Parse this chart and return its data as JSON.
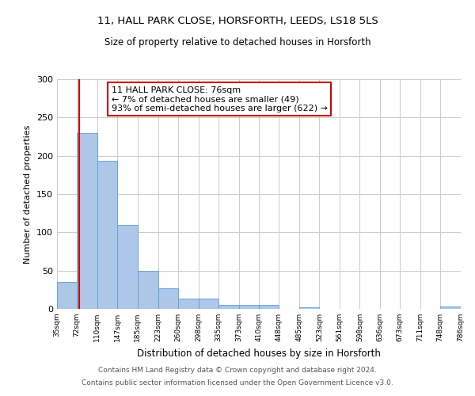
{
  "title1": "11, HALL PARK CLOSE, HORSFORTH, LEEDS, LS18 5LS",
  "title2": "Size of property relative to detached houses in Horsforth",
  "xlabel": "Distribution of detached houses by size in Horsforth",
  "ylabel": "Number of detached properties",
  "annotation_title": "11 HALL PARK CLOSE: 76sqm",
  "annotation_line2": "← 7% of detached houses are smaller (49)",
  "annotation_line3": "93% of semi-detached houses are larger (622) →",
  "footer1": "Contains HM Land Registry data © Crown copyright and database right 2024.",
  "footer2": "Contains public sector information licensed under the Open Government Licence v3.0.",
  "bar_edges": [
    35,
    72,
    110,
    147,
    185,
    223,
    260,
    298,
    335,
    373,
    410,
    448,
    485,
    523,
    561,
    598,
    636,
    673,
    711,
    748,
    786
  ],
  "bar_heights": [
    35,
    230,
    193,
    110,
    50,
    27,
    13,
    13,
    5,
    5,
    5,
    0,
    2,
    0,
    0,
    0,
    0,
    0,
    0,
    3
  ],
  "bar_color": "#aec6e8",
  "bar_edge_color": "#5a9fd4",
  "property_line_x": 76,
  "property_line_color": "#cc0000",
  "annotation_box_edge_color": "#cc0000",
  "ylim": [
    0,
    300
  ],
  "yticks": [
    0,
    50,
    100,
    150,
    200,
    250,
    300
  ],
  "background_color": "#ffffff",
  "grid_color": "#cccccc"
}
